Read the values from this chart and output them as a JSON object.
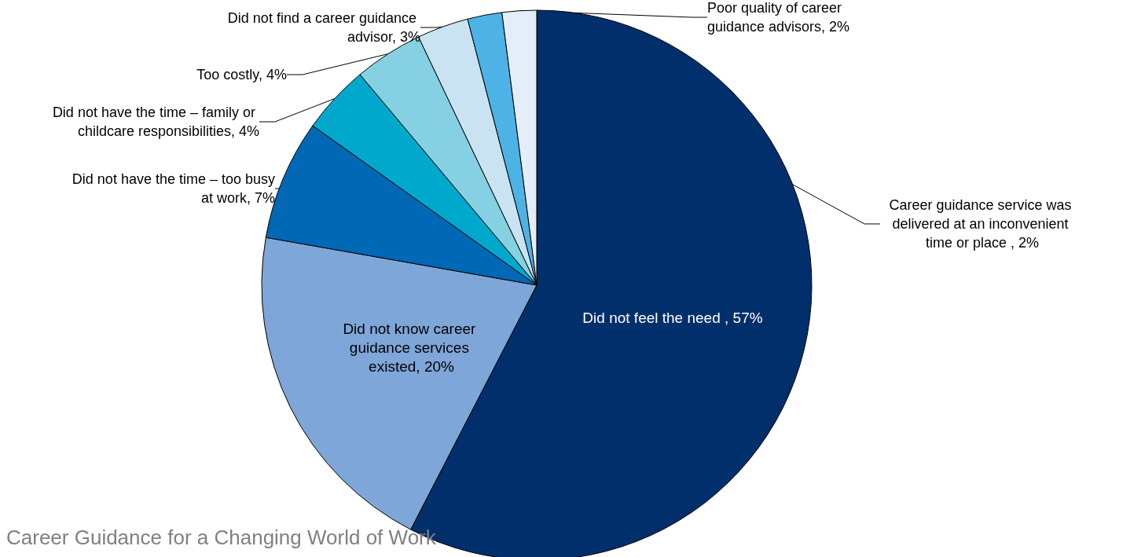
{
  "chart_data": {
    "type": "pie",
    "categories": [
      "Did not feel the need ",
      "Did not know career guidance services existed",
      "Did not have the time – too busy at work",
      "Did not have the time – family or childcare responsibilities",
      "Too costly",
      "Did not find a career guidance advisor",
      "Career guidance service was delivered at an inconvenient time or place ",
      "Poor quality of career guidance advisors"
    ],
    "values": [
      57,
      20,
      7,
      4,
      4,
      3,
      2,
      2
    ],
    "value_labels": [
      "57%",
      "20%",
      "7%",
      "4%",
      "4%",
      "3%",
      "2%",
      "2%"
    ],
    "colors": [
      "#002f6c",
      "#7ea6d8",
      "#0068b4",
      "#00a9cc",
      "#85d1e3",
      "#c9e3f3",
      "#4db3e6",
      "#e3eef8"
    ],
    "annotations": [
      "Career Guidance for a Changing World of Work"
    ],
    "legend": false
  }
}
